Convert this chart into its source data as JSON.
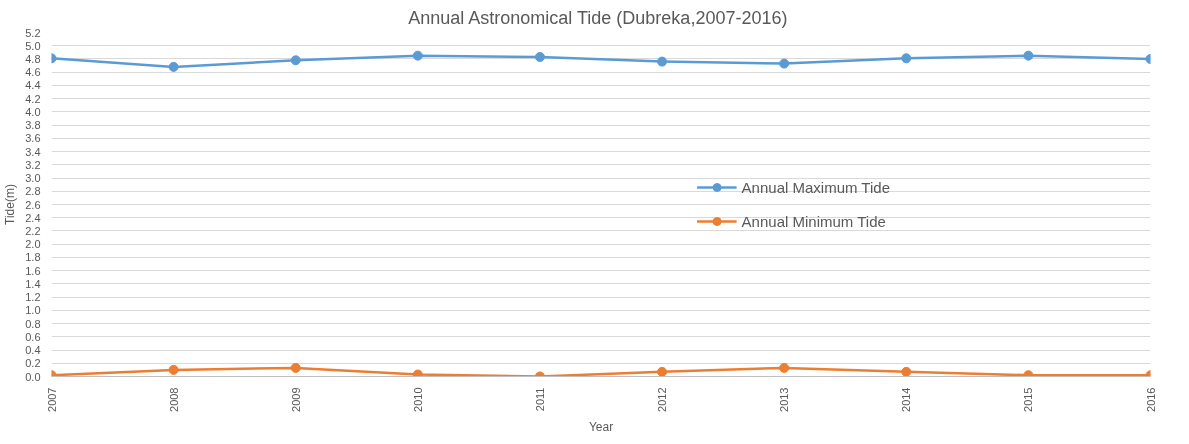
{
  "chart_data": {
    "type": "line",
    "title": "Annual Astronomical Tide  (Dubreka,2007-2016)",
    "xlabel": "Year",
    "ylabel": "Tide(m)",
    "x": [
      2007,
      2008,
      2009,
      2010,
      2011,
      2012,
      2013,
      2014,
      2015,
      2016
    ],
    "xlim": [
      2007,
      2016
    ],
    "xticks": [
      2007,
      2008,
      2009,
      2010,
      2011,
      2012,
      2013,
      2014,
      2015,
      2016
    ],
    "ylim": [
      0,
      5.2
    ],
    "yticks": [
      {
        "value": 0,
        "label": "0.0"
      },
      {
        "value": 0.2,
        "label": "0.2"
      },
      {
        "value": 0.4,
        "label": "0.4"
      },
      {
        "value": 0.6,
        "label": "0.6"
      },
      {
        "value": 0.8,
        "label": "0.8"
      },
      {
        "value": 1.0,
        "label": "1.0"
      },
      {
        "value": 1.2,
        "label": "1.2"
      },
      {
        "value": 1.4,
        "label": "1.4"
      },
      {
        "value": 1.6,
        "label": "1.6"
      },
      {
        "value": 1.8,
        "label": "1.8"
      },
      {
        "value": 2.0,
        "label": "2.0"
      },
      {
        "value": 2.2,
        "label": "2.2"
      },
      {
        "value": 2.4,
        "label": "2.4"
      },
      {
        "value": 2.6,
        "label": "2.6"
      },
      {
        "value": 2.8,
        "label": "2.8"
      },
      {
        "value": 3.0,
        "label": "3.0"
      },
      {
        "value": 3.2,
        "label": "3.2"
      },
      {
        "value": 3.4,
        "label": "3.4"
      },
      {
        "value": 3.6,
        "label": "3.6"
      },
      {
        "value": 3.8,
        "label": "3.8"
      },
      {
        "value": 4.0,
        "label": "4.0"
      },
      {
        "value": 4.2,
        "label": "4.2"
      },
      {
        "value": 4.4,
        "label": "4.4"
      },
      {
        "value": 4.6,
        "label": "4.6"
      },
      {
        "value": 4.8,
        "label": "4.8"
      },
      {
        "value": 5.0,
        "label": "5.0"
      },
      {
        "value": 5.2,
        "label": "5.2"
      }
    ],
    "grid": "y",
    "legend": "right",
    "marker": "circle",
    "line_style": "solid",
    "series": [
      {
        "name": "Annual Maximum Tide",
        "color": "#5b9bd5",
        "values": [
          4.81,
          4.68,
          4.78,
          4.85,
          4.83,
          4.76,
          4.73,
          4.81,
          4.85,
          4.8
        ]
      },
      {
        "name": "Annual Minimum Tide",
        "color": "#ed7d31",
        "values": [
          0.02,
          0.1,
          0.13,
          0.03,
          0.0,
          0.07,
          0.13,
          0.07,
          0.02,
          0.02
        ]
      }
    ]
  }
}
